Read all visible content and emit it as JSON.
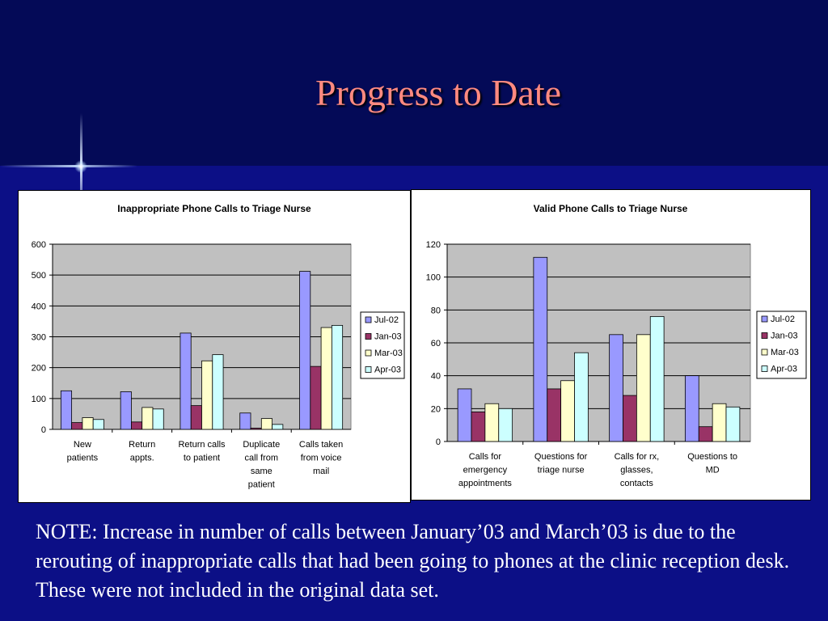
{
  "slide": {
    "title": "Progress to Date",
    "note": "NOTE:  Increase in number of calls between January’03 and March’03 is due to the rerouting of inappropriate calls that had been going to phones at the clinic reception desk.  These were not included in the original data set."
  },
  "colors": {
    "background_top": "#040a57",
    "background_bottom": "#0c0f86",
    "title": "#ff8a80",
    "plot_area": "#c0c0c0",
    "series": [
      "#9999ff",
      "#993366",
      "#ffffcc",
      "#ccffff"
    ]
  },
  "chart_data": [
    {
      "type": "bar",
      "title": "Inappropriate Phone Calls to Triage Nurse",
      "xlabel": "",
      "ylabel": "",
      "ylim": [
        0,
        600
      ],
      "yticks": [
        0,
        100,
        200,
        300,
        400,
        500,
        600
      ],
      "grid": true,
      "legend_position": "right",
      "categories": [
        [
          "New",
          "patients"
        ],
        [
          "Return",
          "appts."
        ],
        [
          "Return calls",
          "to patient"
        ],
        [
          "Duplicate",
          "call from",
          "same",
          "patient"
        ],
        [
          "Calls taken",
          "from voice",
          "mail"
        ]
      ],
      "series": [
        {
          "name": "Jul-02",
          "values": [
            125,
            122,
            312,
            53,
            512
          ]
        },
        {
          "name": "Jan-03",
          "values": [
            22,
            24,
            77,
            4,
            204
          ]
        },
        {
          "name": "Mar-03",
          "values": [
            38,
            71,
            222,
            35,
            330
          ]
        },
        {
          "name": "Apr-03",
          "values": [
            32,
            66,
            242,
            16,
            337
          ]
        }
      ]
    },
    {
      "type": "bar",
      "title": "Valid Phone Calls to Triage Nurse",
      "xlabel": "",
      "ylabel": "",
      "ylim": [
        0,
        120
      ],
      "yticks": [
        0,
        20,
        40,
        60,
        80,
        100,
        120
      ],
      "grid": true,
      "legend_position": "right",
      "categories": [
        [
          "Calls for",
          "emergency",
          "appointments"
        ],
        [
          "Questions for",
          "triage nurse"
        ],
        [
          "Calls for rx,",
          "glasses,",
          "contacts"
        ],
        [
          "Questions to",
          "MD"
        ]
      ],
      "series": [
        {
          "name": "Jul-02",
          "values": [
            32,
            112,
            65,
            40
          ]
        },
        {
          "name": "Jan-03",
          "values": [
            18,
            32,
            28,
            9
          ]
        },
        {
          "name": "Mar-03",
          "values": [
            23,
            37,
            65,
            23
          ]
        },
        {
          "name": "Apr-03",
          "values": [
            20,
            54,
            76,
            21
          ]
        }
      ]
    }
  ]
}
